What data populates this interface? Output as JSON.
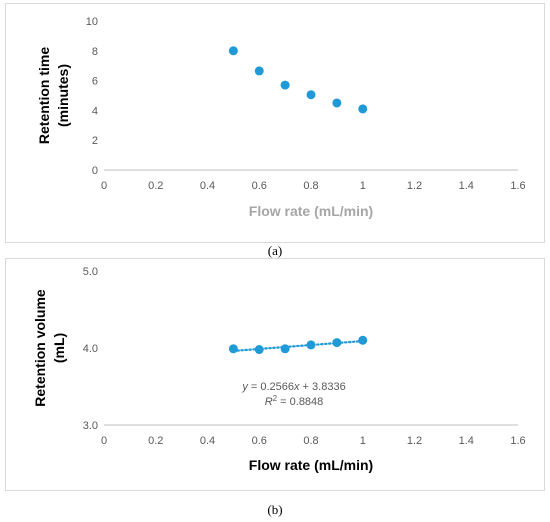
{
  "chart_data": [
    {
      "id": "a",
      "type": "scatter",
      "caption": "(a)",
      "xlabel": "Flow rate  (mL/min)",
      "ylabel": [
        "Retention time",
        "(minutes)"
      ],
      "xlim": [
        0,
        1.6
      ],
      "ylim": [
        0,
        10
      ],
      "xticks": [
        "0",
        "0.2",
        "0.4",
        "0.6",
        "0.8",
        "1",
        "1.2",
        "1.4",
        "1.6"
      ],
      "yticks": [
        "0",
        "2",
        "4",
        "6",
        "8",
        "10"
      ],
      "grid": false,
      "marker_color": "#1f9ad6",
      "x": [
        0.5,
        0.6,
        0.7,
        0.8,
        0.9,
        1.0
      ],
      "y": [
        8.0,
        6.65,
        5.7,
        5.05,
        4.5,
        4.1
      ]
    },
    {
      "id": "b",
      "type": "scatter",
      "caption": "(b)",
      "xlabel": "Flow rate  (mL/min)",
      "ylabel": [
        "Retention volume",
        "(mL)"
      ],
      "xlim": [
        0,
        1.6
      ],
      "ylim": [
        3.0,
        5.0
      ],
      "xticks": [
        "0",
        "0.2",
        "0.4",
        "0.6",
        "0.8",
        "1",
        "1.2",
        "1.4",
        "1.6"
      ],
      "yticks": [
        "3.0",
        "4.0",
        "5.0"
      ],
      "grid": false,
      "marker_color": "#1f9ad6",
      "x": [
        0.5,
        0.6,
        0.7,
        0.8,
        0.9,
        1.0
      ],
      "y": [
        3.99,
        3.98,
        3.99,
        4.04,
        4.07,
        4.1
      ],
      "trendline": {
        "type": "linear",
        "slope": 0.2566,
        "intercept": 3.8336,
        "equation": "y = 0.2566x + 3.8336",
        "r2_label": "R",
        "r2_value": " = 0.8848",
        "style": "dotted"
      }
    }
  ]
}
